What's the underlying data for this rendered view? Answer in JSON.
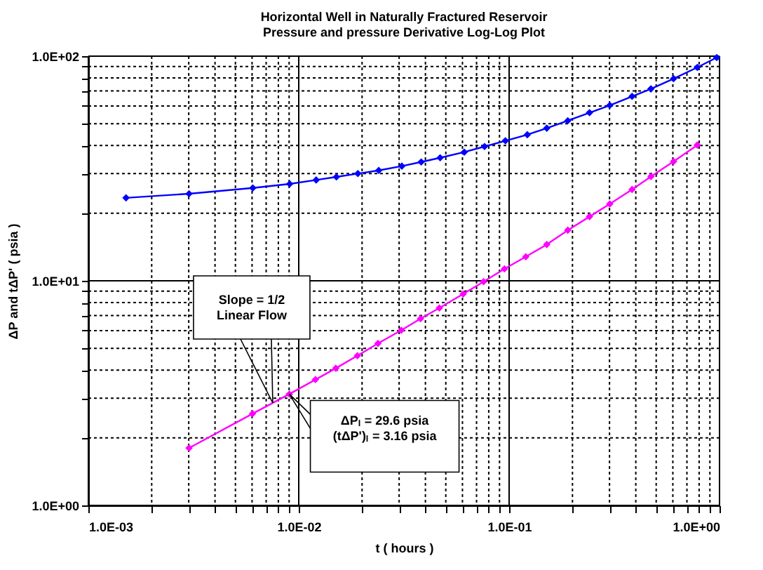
{
  "chart_data": {
    "type": "line",
    "title": "Horizontal  Well in Naturally Fractured  Reservoir",
    "subtitle": "Pressure and pressure Derivative Log-Log Plot",
    "xlabel": "t ( hours )",
    "ylabel": "ΔP and tΔP' ( psia )",
    "log": "xy",
    "grid": true,
    "marker": "diamond",
    "line_style": "solid",
    "xlim": [
      0.001,
      1
    ],
    "ylim": [
      1,
      100
    ],
    "xticks": [
      {
        "value": 0.001,
        "label": "1.0E-03"
      },
      {
        "value": 0.002,
        "label": null
      },
      {
        "value": 0.003,
        "label": null
      },
      {
        "value": 0.004,
        "label": null
      },
      {
        "value": 0.005,
        "label": null
      },
      {
        "value": 0.006,
        "label": null
      },
      {
        "value": 0.007,
        "label": null
      },
      {
        "value": 0.008,
        "label": null
      },
      {
        "value": 0.009,
        "label": null
      },
      {
        "value": 0.01,
        "label": "1.0E-02"
      },
      {
        "value": 0.02,
        "label": null
      },
      {
        "value": 0.03,
        "label": null
      },
      {
        "value": 0.04,
        "label": null
      },
      {
        "value": 0.05,
        "label": null
      },
      {
        "value": 0.06,
        "label": null
      },
      {
        "value": 0.07,
        "label": null
      },
      {
        "value": 0.08,
        "label": null
      },
      {
        "value": 0.09,
        "label": null
      },
      {
        "value": 0.1,
        "label": "1.0E-01"
      },
      {
        "value": 0.2,
        "label": null
      },
      {
        "value": 0.3,
        "label": null
      },
      {
        "value": 0.4,
        "label": null
      },
      {
        "value": 0.5,
        "label": null
      },
      {
        "value": 0.6,
        "label": null
      },
      {
        "value": 0.7,
        "label": null
      },
      {
        "value": 0.8,
        "label": null
      },
      {
        "value": 0.9,
        "label": null
      },
      {
        "value": 1,
        "label": "1.0E+00"
      }
    ],
    "yticks": [
      {
        "value": 1,
        "label": "1.0E+00"
      },
      {
        "value": 2,
        "label": null
      },
      {
        "value": 3,
        "label": null
      },
      {
        "value": 4,
        "label": null
      },
      {
        "value": 5,
        "label": null
      },
      {
        "value": 6,
        "label": null
      },
      {
        "value": 7,
        "label": null
      },
      {
        "value": 8,
        "label": null
      },
      {
        "value": 9,
        "label": null
      },
      {
        "value": 10,
        "label": "1.0E+01"
      },
      {
        "value": 20,
        "label": null
      },
      {
        "value": 30,
        "label": null
      },
      {
        "value": 40,
        "label": null
      },
      {
        "value": 50,
        "label": null
      },
      {
        "value": 60,
        "label": null
      },
      {
        "value": 70,
        "label": null
      },
      {
        "value": 80,
        "label": null
      },
      {
        "value": 90,
        "label": null
      },
      {
        "value": 100,
        "label": "1.0E+02"
      }
    ],
    "series": [
      {
        "color": "#0000ff",
        "x": [
          0.00151,
          0.00301,
          0.00605,
          0.00906,
          0.0121,
          0.0151,
          0.0191,
          0.024,
          0.0309,
          0.0382,
          0.047,
          0.0612,
          0.0764,
          0.096,
          0.122,
          0.151,
          0.19,
          0.241,
          0.301,
          0.384,
          0.472,
          0.605,
          0.784,
          0.97
        ],
        "values": [
          23.4,
          24.4,
          25.9,
          27.0,
          28.1,
          29.0,
          30.0,
          31.0,
          32.4,
          33.8,
          35.3,
          37.4,
          39.6,
          42.0,
          44.7,
          47.8,
          51.6,
          56.0,
          60.4,
          66.2,
          71.5,
          79.4,
          89.1,
          98.6
        ]
      },
      {
        "color": "#ff00ff",
        "x": [
          0.00301,
          0.00603,
          0.00902,
          0.012,
          0.015,
          0.019,
          0.0238,
          0.0307,
          0.0379,
          0.0466,
          0.0605,
          0.0756,
          0.095,
          0.12,
          0.151,
          0.19,
          0.241,
          0.301,
          0.384,
          0.472,
          0.605,
          0.784
        ],
        "values": [
          1.8,
          2.56,
          3.13,
          3.63,
          4.08,
          4.64,
          5.26,
          6.02,
          6.78,
          7.57,
          8.74,
          9.91,
          11.3,
          12.8,
          14.5,
          16.8,
          19.3,
          22.0,
          25.5,
          29.1,
          34.0,
          40.2
        ]
      }
    ],
    "annotations": [
      "Slope = 1/2\nLinear Flow",
      "ΔPₗ = 29.6 psia\n\n(tΔP')ₗ = 3.16 psia"
    ]
  }
}
